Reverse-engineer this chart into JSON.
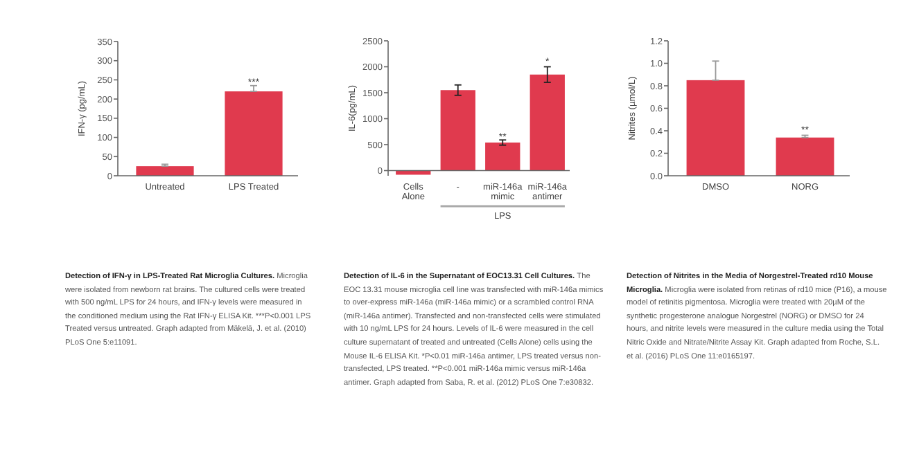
{
  "chart_data": [
    {
      "type": "bar",
      "title": "Detection of IFN-γ in LPS-Treated Rat Microglia Cultures.",
      "ylabel": "IFN-γ (pg/mL)",
      "categories": [
        "Untreated",
        "LPS Treated"
      ],
      "values": [
        25,
        220
      ],
      "color": "#e03a4e",
      "errors": [
        [
          25,
          30
        ],
        [
          220,
          235
        ]
      ],
      "ylim": [
        0,
        350
      ],
      "yticks": [
        0,
        50,
        100,
        150,
        200,
        250,
        300,
        350
      ],
      "annotations": [
        {
          "text": "***",
          "x": "LPS Treated",
          "y": 237
        },
        "Microglia were isolated from newborn rat brains. The cultured cells were treated with 500 ng/mL LPS for 24 hours, and IFN-γ levels were measured in the conditioned medium using the Rat IFN-γ ELISA Kit. ***P<0.001 LPS Treated versus untreated. Graph adapted from Mäkelä, J. et al. (2010) PLoS One 5:e11091."
      ]
    },
    {
      "type": "bar",
      "title": "Detection of IL-6 in the Supernatant of EOC13.31 Cell Cultures.",
      "ylabel": "IL-6(pg/mL)",
      "categories": [
        "Cells Alone",
        "-",
        "miR-146a mimic",
        "miR-146a antimer"
      ],
      "values": [
        -80,
        1550,
        540,
        1850
      ],
      "color": "#e03a4e",
      "errors": [
        null,
        100,
        50,
        150
      ],
      "ylim": [
        -100,
        2500
      ],
      "yticks": [
        0,
        500,
        1000,
        1500,
        2000,
        2500
      ],
      "annotations": [
        {
          "text": "**",
          "x": "miR-146a mimic",
          "y": 600
        },
        {
          "text": "*",
          "x": "miR-146a antimer",
          "y": 2050
        },
        {
          "text": "LPS"
        },
        "The EOC 13.31 mouse microglia cell line was transfected with miR-146a mimics to over-express miR-146a (miR-146a mimic) or a scrambled control RNA (miR-146a antimer). Transfected and non-transfected cells were stimulated with 10 ng/mL LPS for 24 hours. Levels of IL-6 were measured in the cell culture supernatant of treated and untreated (Cells Alone) cells using the Mouse IL-6 ELISA Kit. *P<0.01 miR-146a antimer, LPS treated versus non-transfected, LPS treated. **P<0.001 miR-146a mimic versus miR-146a antimer. Graph adapted from Saba, R. et al. (2012) PLoS One 7:e30832."
      ]
    },
    {
      "type": "bar",
      "title": "Detection of Nitrites in the Media of Norgestrel-Treated rd10 Mouse Microglia.",
      "ylabel": "Nitrites (µmol/L)",
      "categories": [
        "DMSO",
        "NORG"
      ],
      "values": [
        0.85,
        0.34
      ],
      "color": "#e03a4e",
      "errors": [
        [
          0.85,
          1.02
        ],
        [
          0.34,
          0.36
        ]
      ],
      "ylim": [
        0,
        1.2
      ],
      "yticks": [
        {
          "value": 0,
          "label": "0.0"
        },
        0.2,
        0.4,
        0.6,
        0.8,
        {
          "value": 1,
          "label": "1.0"
        },
        1.2
      ],
      "annotations": [
        {
          "text": "**",
          "x": "NORG",
          "y": 0.38
        },
        "Microglia were isolated from retinas of rd10 mice (P16), a mouse model of retinitis pigmentosa. Microglia were treated with 20µM of the synthetic progesterone analogue Norgestrel (NORG) or DMSO for 24 hours, and nitrite levels were measured in the culture media using the Total Nitric Oxide and Nitrate/Nitrite Assay Kit. Graph adapted from Roche, S.L. et al. (2016) PLoS One 11:e0165197."
      ]
    }
  ]
}
